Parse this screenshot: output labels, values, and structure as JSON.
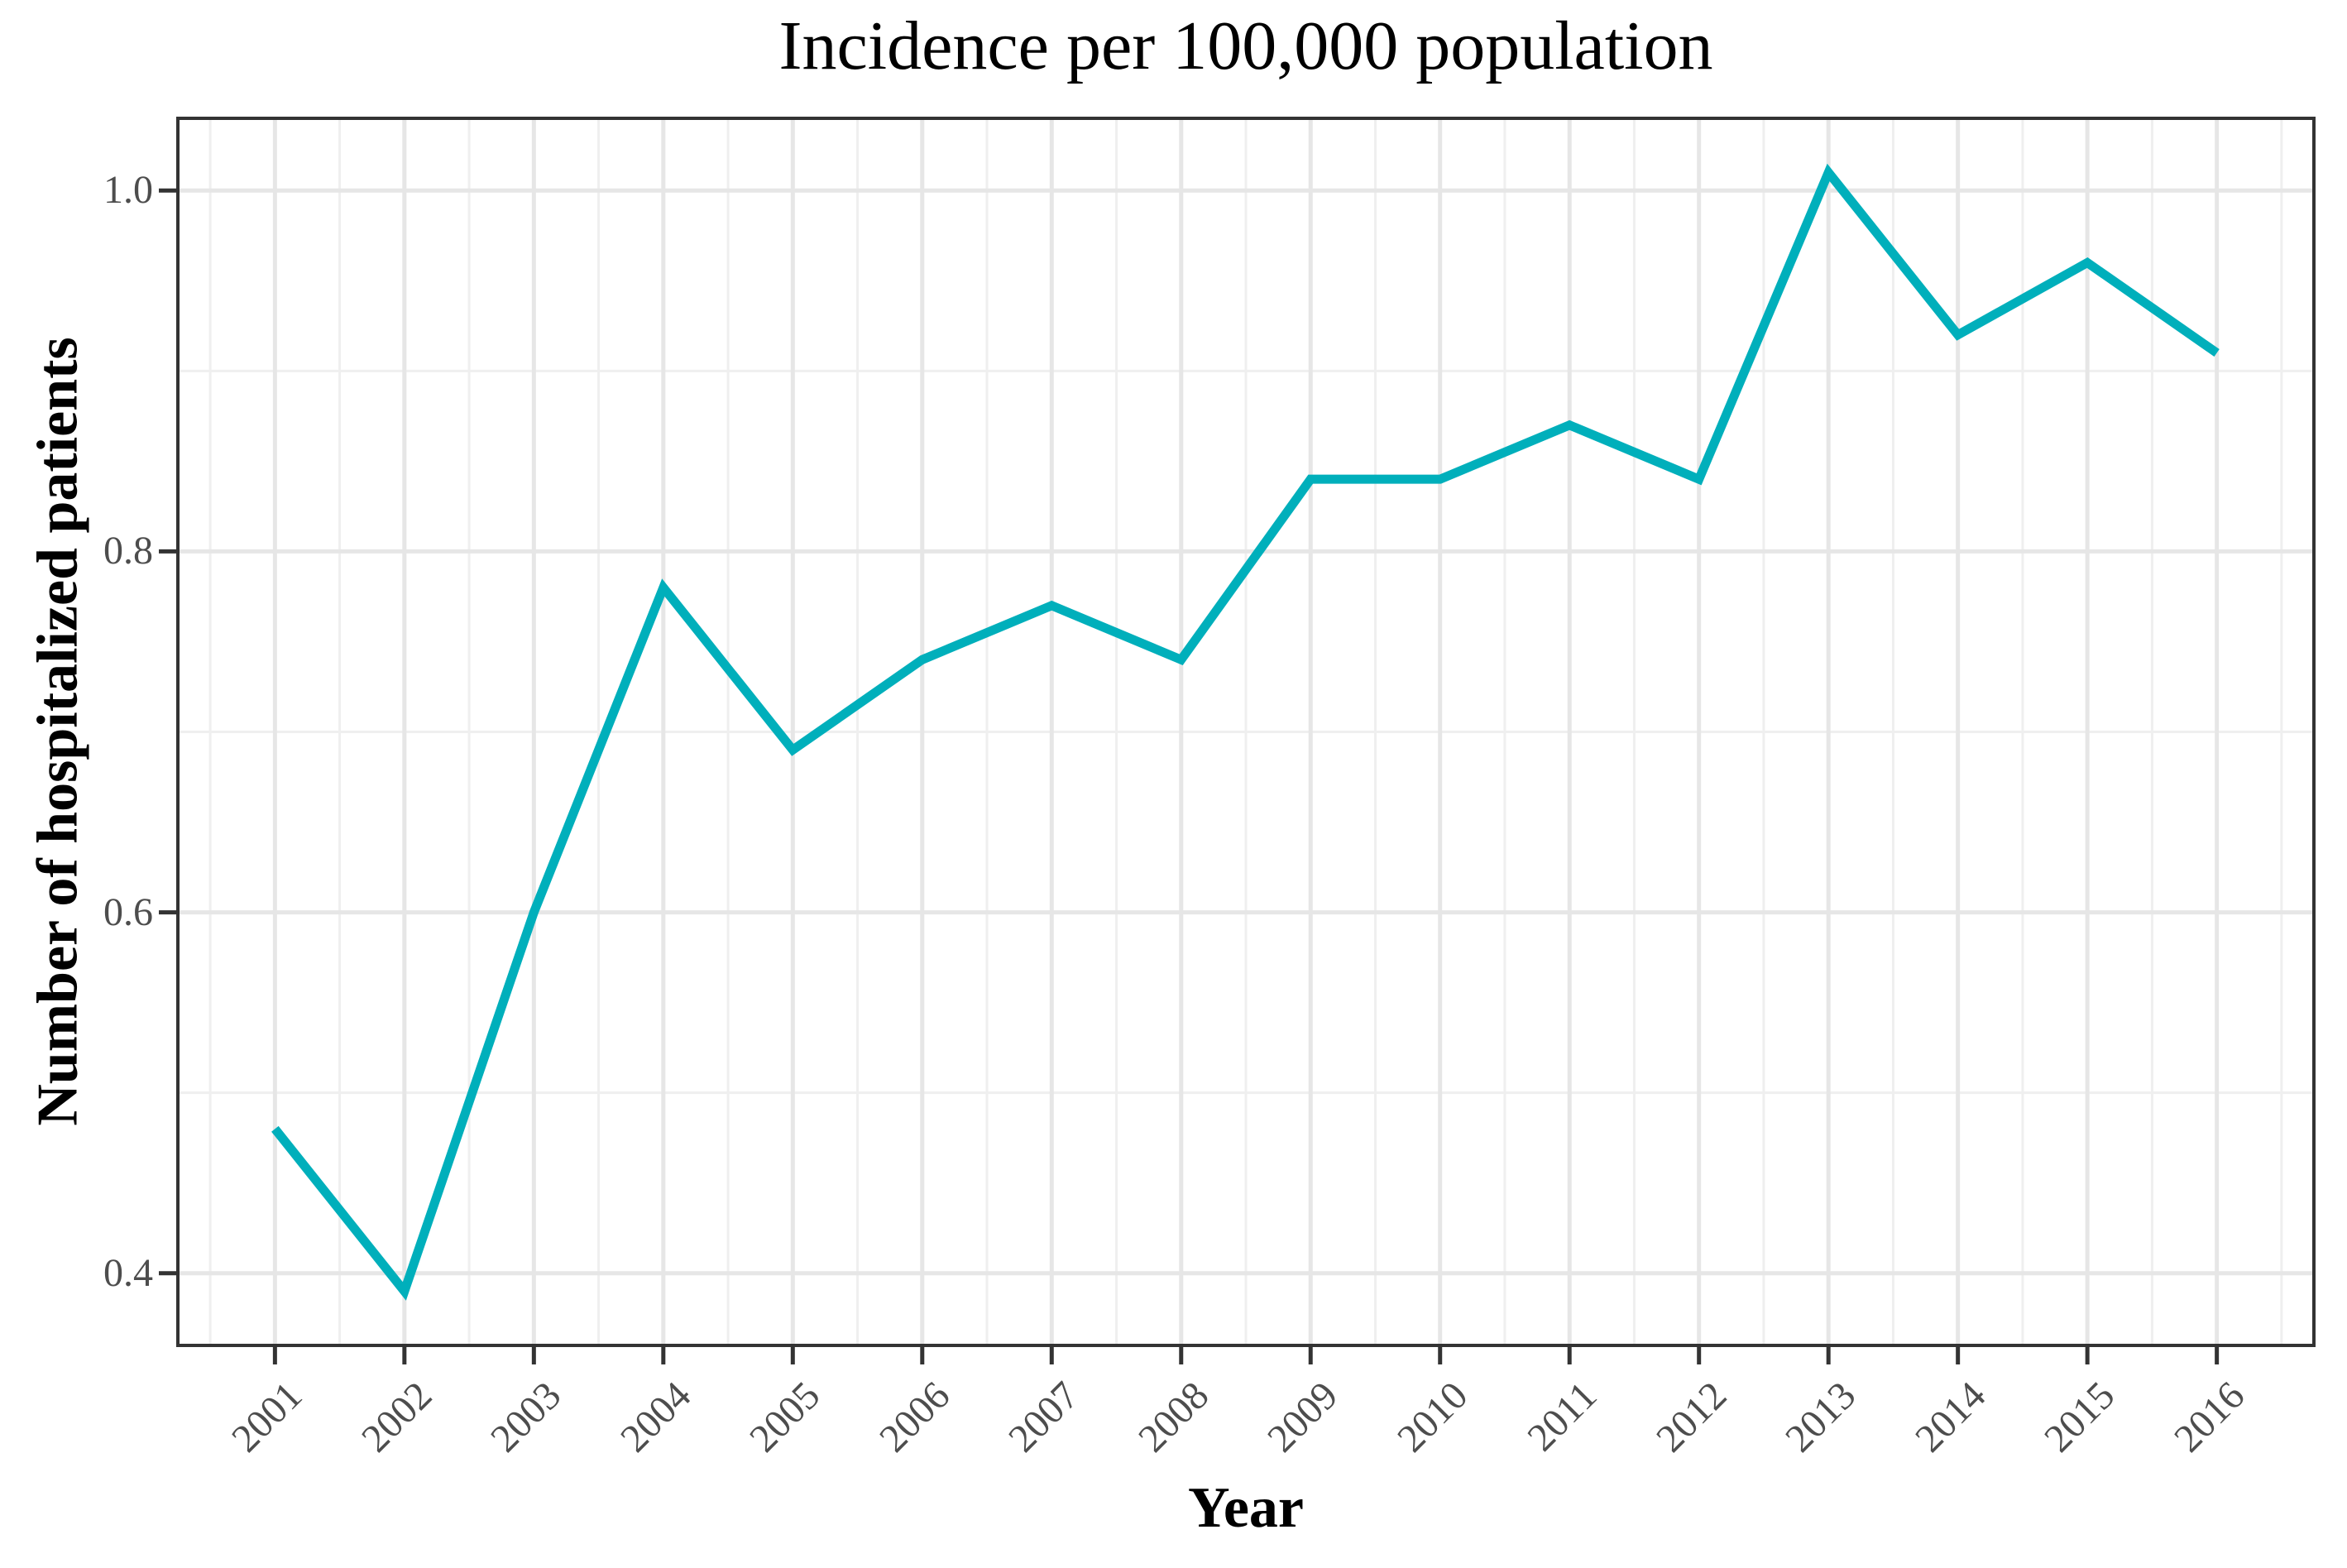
{
  "title": "Incidence per 100,000 population",
  "x_axis": {
    "label": "Year",
    "tick_labels": [
      "2001",
      "2002",
      "2003",
      "2004",
      "2005",
      "2006",
      "2007",
      "2008",
      "2009",
      "2010",
      "2011",
      "2012",
      "2013",
      "2014",
      "2015",
      "2016"
    ]
  },
  "y_axis": {
    "label": "Number of hospitalized patients",
    "tick_labels": [
      "1.0",
      "0.8",
      "0.6",
      "0.4"
    ]
  },
  "chart_data": {
    "type": "line",
    "title": "Incidence per 100,000 population",
    "xlabel": "Year",
    "ylabel": "Number of hospitalized patients",
    "x": [
      2001,
      2002,
      2003,
      2004,
      2005,
      2006,
      2007,
      2008,
      2009,
      2010,
      2011,
      2012,
      2013,
      2014,
      2015,
      2016
    ],
    "values": [
      0.48,
      0.39,
      0.6,
      0.78,
      0.69,
      0.74,
      0.77,
      0.74,
      0.84,
      0.84,
      0.87,
      0.84,
      1.01,
      0.92,
      0.96,
      0.91
    ],
    "x_ticks": [
      2001,
      2002,
      2003,
      2004,
      2005,
      2006,
      2007,
      2008,
      2009,
      2010,
      2011,
      2012,
      2013,
      2014,
      2015,
      2016
    ],
    "y_ticks": [
      1.0,
      0.8,
      0.6,
      0.4
    ],
    "x_minor_gridlines": [
      2000.5,
      2001.5,
      2002.5,
      2003.5,
      2004.5,
      2005.5,
      2006.5,
      2007.5,
      2008.5,
      2009.5,
      2010.5,
      2011.5,
      2012.5,
      2013.5,
      2014.5,
      2015.5,
      2016.5
    ],
    "y_minor_gridlines": [
      0.5,
      0.7,
      0.9
    ],
    "xlim": [
      2000.25,
      2016.75
    ],
    "ylim": [
      0.36,
      1.04
    ],
    "grid": true,
    "legend": false
  },
  "colors": {
    "line": "#00AFBB",
    "grid_major": "#E6E6E6",
    "grid_minor": "#EFEFEF",
    "axis": "#333333",
    "tick_label": "#4d4d4d",
    "title": "#000000",
    "panel_background": "#FFFFFF"
  }
}
